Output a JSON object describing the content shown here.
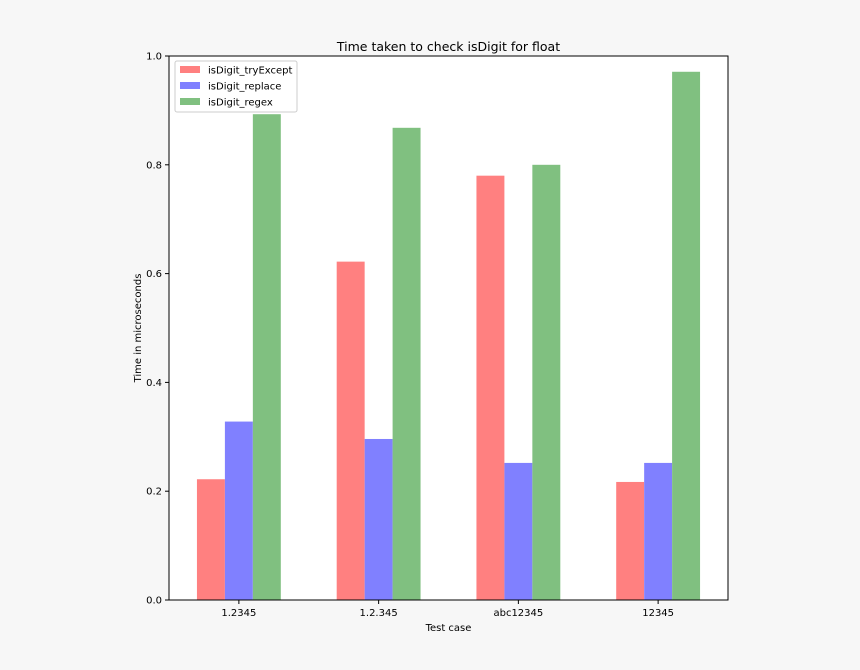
{
  "chart_data": {
    "type": "bar",
    "title": "Time taken to check isDigit for float",
    "xlabel": "Test case",
    "ylabel": "Time in microseconds",
    "categories": [
      "1.2345",
      "1.2.345",
      "abc12345",
      "12345"
    ],
    "ylim": [
      0,
      1.0
    ],
    "yticks": [
      0.0,
      0.2,
      0.4,
      0.6,
      0.8,
      1.0
    ],
    "ytick_labels": [
      "0.0",
      "0.2",
      "0.4",
      "0.6",
      "0.8",
      "1.0"
    ],
    "grid": false,
    "legend_position": "top-left",
    "series": [
      {
        "name": "isDigit_tryExcept",
        "color": "#ff8080",
        "values": [
          0.222,
          0.622,
          0.78,
          0.217
        ]
      },
      {
        "name": "isDigit_replace",
        "color": "#8080ff",
        "values": [
          0.328,
          0.296,
          0.252,
          0.252
        ]
      },
      {
        "name": "isDigit_regex",
        "color": "#80c080",
        "values": [
          0.893,
          0.868,
          0.8,
          0.971
        ]
      }
    ]
  }
}
